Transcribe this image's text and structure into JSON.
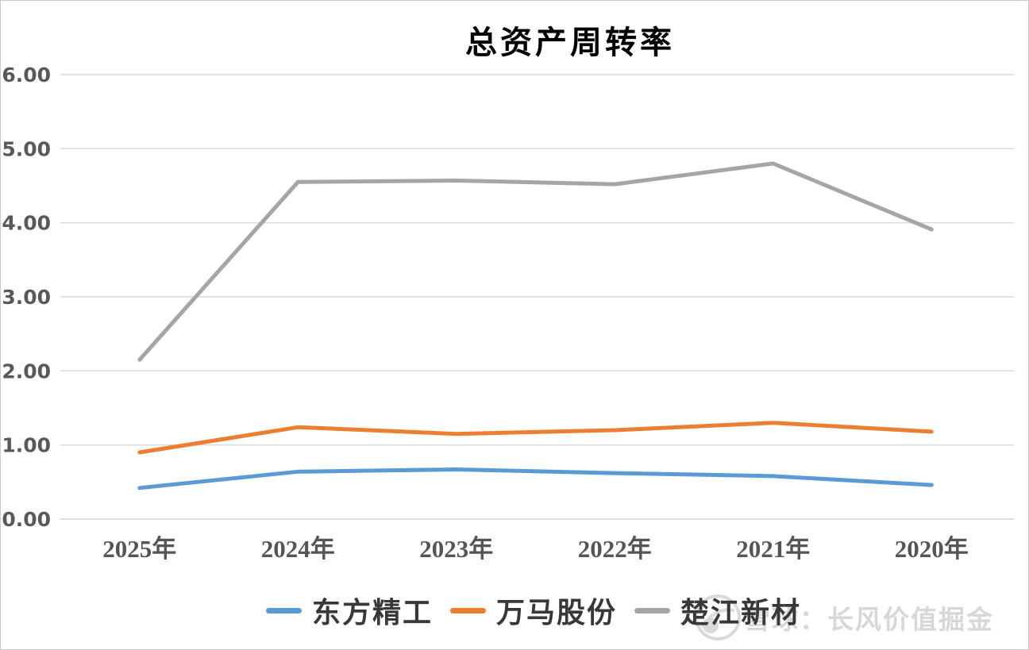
{
  "chart_title": "总资产周转率",
  "watermark": {
    "icon": "snowball-logo-icon",
    "text": "雪球：长风价值掘金"
  },
  "colors": {
    "background": "#FFFFFF",
    "border": "#C9C9C9",
    "grid": "#D9D9D9",
    "axis_line": "#D0D0D0",
    "y_tick_text": "#595959",
    "x_tick_text": "#555555",
    "title_text": "#000000",
    "legend_text": "#383838",
    "watermark_text": "#D7D7D7",
    "series_blue": "#5B9BD5",
    "series_orange": "#ED7D31",
    "series_gray": "#A5A5A5"
  },
  "chart_data": {
    "type": "line",
    "title": "总资产周转率",
    "categories": [
      "2025年",
      "2024年",
      "2023年",
      "2022年",
      "2021年",
      "2020年"
    ],
    "series": [
      {
        "name": "东方精工",
        "color": "#5B9BD5",
        "values": [
          0.42,
          0.64,
          0.67,
          0.62,
          0.58,
          0.46
        ]
      },
      {
        "name": "万马股份",
        "color": "#ED7D31",
        "values": [
          0.9,
          1.24,
          1.15,
          1.2,
          1.3,
          1.18
        ]
      },
      {
        "name": "楚江新材",
        "color": "#A5A5A5",
        "values": [
          2.15,
          4.55,
          4.57,
          4.52,
          4.8,
          3.91
        ]
      }
    ],
    "y_ticks": [
      "6.00",
      "5.00",
      "4.00",
      "3.00",
      "2.00",
      "1.00",
      "0.00"
    ],
    "ylim": [
      0,
      6
    ],
    "xlabel": "",
    "ylabel": "",
    "grid": "horizontal",
    "legend_position": "bottom"
  }
}
